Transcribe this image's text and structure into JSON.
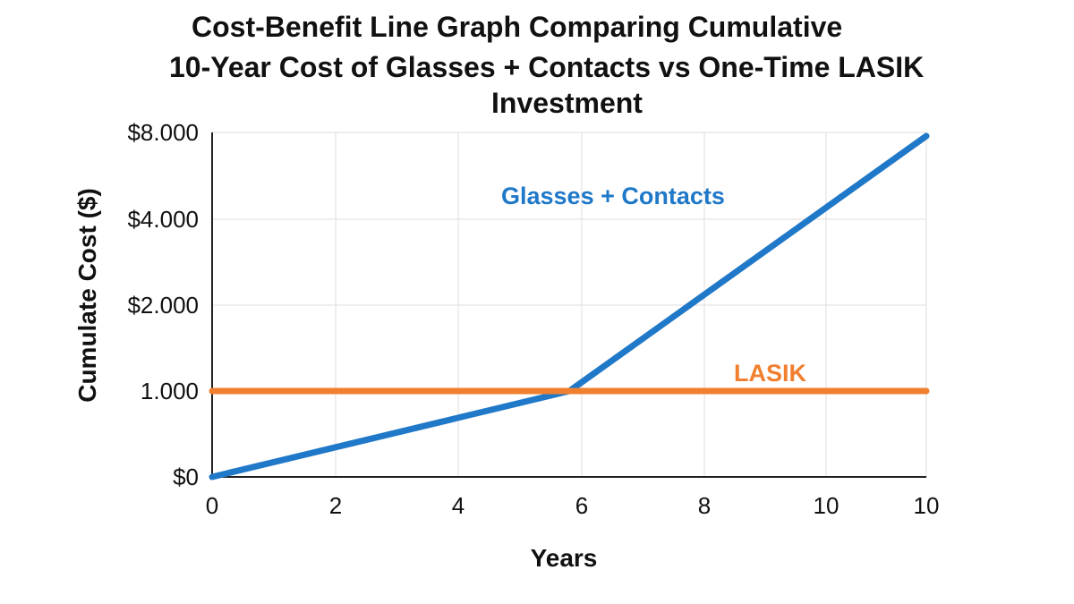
{
  "title_lines": [
    "Cost-Benefit Line Graph Comparing Cumulative",
    "10-Year Cost of Glasses + Contacts vs One-Time LASIK",
    "Investment"
  ],
  "chart_data": {
    "type": "line",
    "title": "Cost-Benefit Line Graph Comparing Cumulative 10-Year Cost of Glasses + Contacts vs One-Time LASIK Investment",
    "xlabel": "Years",
    "ylabel": "Cumulate Cost ($)",
    "x_tick_labels": [
      "0",
      "2",
      "4",
      "6",
      "8",
      "10",
      "10"
    ],
    "y_tick_labels": [
      "$0",
      "1.000",
      "$2.000",
      "$4.000",
      "$8.000"
    ],
    "grid": true,
    "series": [
      {
        "name": "Glasses + Contacts",
        "color": "#1f78c8",
        "x_tick_index": [
          0,
          2.9,
          6
        ],
        "y_tick_index": [
          0,
          1,
          4
        ]
      },
      {
        "name": "LASIK",
        "color": "#f07f2e",
        "x_tick_index": [
          0,
          6
        ],
        "y_tick_index": [
          1,
          1
        ]
      }
    ]
  }
}
